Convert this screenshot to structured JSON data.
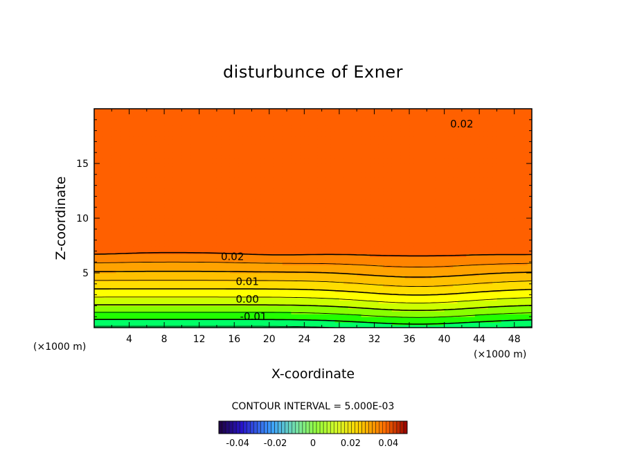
{
  "chart_data": {
    "type": "heatmap",
    "title": "disturbunce of Exner",
    "xlabel": "X-coordinate",
    "ylabel": "Z-coordinate",
    "x_unit": "(×1000 m)",
    "y_unit": "(×1000 m)",
    "xlim": [
      0,
      50
    ],
    "ylim": [
      0,
      20
    ],
    "x_ticks": [
      4,
      8,
      12,
      16,
      20,
      24,
      28,
      32,
      36,
      40,
      44,
      48
    ],
    "y_ticks": [
      5,
      10,
      15
    ],
    "contour_labels": [
      {
        "text": "0.02",
        "x": 15.8,
        "z": 6.5
      },
      {
        "text": "0.01",
        "x": 17.5,
        "z": 4.2
      },
      {
        "text": "0.00",
        "x": 17.5,
        "z": 2.6
      },
      {
        "text": "-0.01",
        "x": 18.2,
        "z": 1.0
      },
      {
        "text": "0.02",
        "x": 42.0,
        "z": 18.6
      }
    ],
    "contour_interval": "CONTOUR INTERVAL = 5.000E-03",
    "colorbar": {
      "min": -0.05,
      "max": 0.05,
      "ticks": [
        "-0.04",
        "-0.02",
        "0",
        "0.02",
        "0.04"
      ]
    }
  }
}
